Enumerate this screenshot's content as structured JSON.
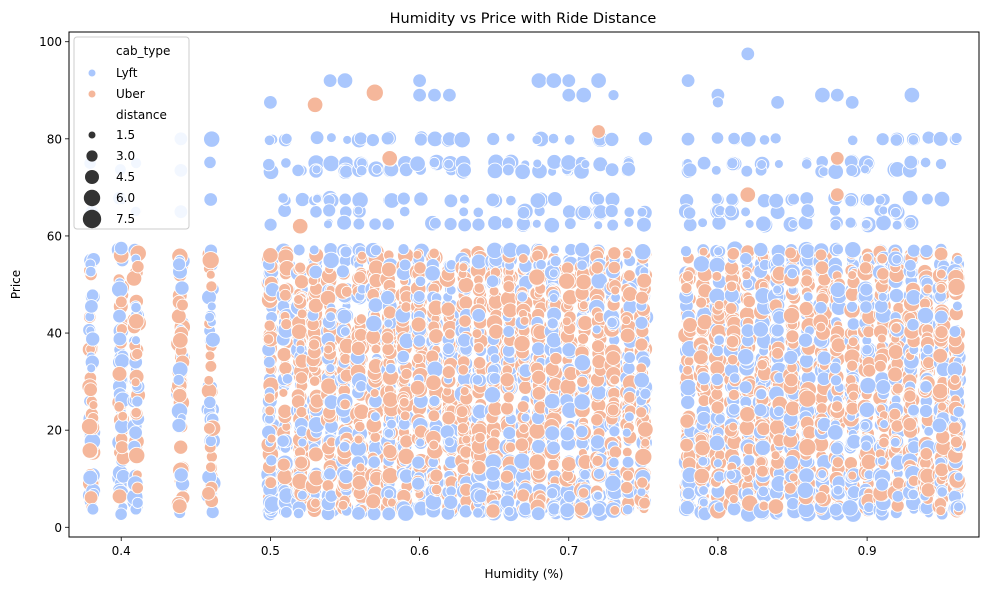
{
  "chart_data": {
    "type": "scatter",
    "title": "Humidity vs Price with Ride Distance",
    "xlabel": "Humidity (%)",
    "ylabel": "Price",
    "xlim": [
      0.365,
      0.975
    ],
    "ylim": [
      -2,
      102
    ],
    "xticks": [
      {
        "value": 0.4,
        "label": "0.4"
      },
      {
        "value": 0.5,
        "label": "0.5"
      },
      {
        "value": 0.6,
        "label": "0.6"
      },
      {
        "value": 0.7,
        "label": "0.7"
      },
      {
        "value": 0.8,
        "label": "0.8"
      },
      {
        "value": 0.9,
        "label": "0.9"
      }
    ],
    "yticks": [
      {
        "value": 0,
        "label": "0"
      },
      {
        "value": 20,
        "label": "20"
      },
      {
        "value": 40,
        "label": "40"
      },
      {
        "value": 60,
        "label": "60"
      },
      {
        "value": 80,
        "label": "80"
      },
      {
        "value": 100,
        "label": "100"
      }
    ],
    "grid": false,
    "hue": "cab_type",
    "size": "distance",
    "series": [
      {
        "name": "Lyft",
        "color": "#aac7fd"
      },
      {
        "name": "Uber",
        "color": "#f5b79b"
      }
    ],
    "humidity_levels": [
      0.38,
      0.4,
      0.41,
      0.44,
      0.46,
      0.5,
      0.51,
      0.52,
      0.53,
      0.54,
      0.55,
      0.56,
      0.57,
      0.58,
      0.59,
      0.6,
      0.61,
      0.62,
      0.63,
      0.64,
      0.65,
      0.66,
      0.67,
      0.68,
      0.69,
      0.7,
      0.71,
      0.72,
      0.73,
      0.74,
      0.75,
      0.78,
      0.79,
      0.8,
      0.81,
      0.82,
      0.83,
      0.84,
      0.85,
      0.86,
      0.87,
      0.88,
      0.89,
      0.9,
      0.91,
      0.92,
      0.93,
      0.94,
      0.95,
      0.96
    ],
    "highlight_points": [
      {
        "series": "Lyft",
        "x": 0.82,
        "y": 97.5,
        "distance": 3.0
      },
      {
        "series": "Lyft",
        "x": 0.5,
        "y": 87.5,
        "distance": 3.0
      },
      {
        "series": "Lyft",
        "x": 0.54,
        "y": 92.0,
        "distance": 3.0
      },
      {
        "series": "Lyft",
        "x": 0.55,
        "y": 92.0,
        "distance": 4.5
      },
      {
        "series": "Lyft",
        "x": 0.6,
        "y": 92.0,
        "distance": 3.0
      },
      {
        "series": "Lyft",
        "x": 0.6,
        "y": 89.0,
        "distance": 3.0
      },
      {
        "series": "Lyft",
        "x": 0.61,
        "y": 89.0,
        "distance": 3.0
      },
      {
        "series": "Lyft",
        "x": 0.62,
        "y": 89.0,
        "distance": 3.0
      },
      {
        "series": "Lyft",
        "x": 0.68,
        "y": 92.0,
        "distance": 4.5
      },
      {
        "series": "Lyft",
        "x": 0.69,
        "y": 92.0,
        "distance": 4.5
      },
      {
        "series": "Lyft",
        "x": 0.7,
        "y": 92.0,
        "distance": 3.0
      },
      {
        "series": "Lyft",
        "x": 0.7,
        "y": 89.0,
        "distance": 3.0
      },
      {
        "series": "Lyft",
        "x": 0.71,
        "y": 89.0,
        "distance": 4.5
      },
      {
        "series": "Lyft",
        "x": 0.72,
        "y": 92.0,
        "distance": 4.5
      },
      {
        "series": "Lyft",
        "x": 0.73,
        "y": 89.0,
        "distance": 1.5
      },
      {
        "series": "Lyft",
        "x": 0.78,
        "y": 92.0,
        "distance": 3.0
      },
      {
        "series": "Lyft",
        "x": 0.8,
        "y": 89.0,
        "distance": 3.0
      },
      {
        "series": "Lyft",
        "x": 0.8,
        "y": 87.5,
        "distance": 1.5
      },
      {
        "series": "Lyft",
        "x": 0.84,
        "y": 87.5,
        "distance": 3.0
      },
      {
        "series": "Lyft",
        "x": 0.87,
        "y": 89.0,
        "distance": 4.5
      },
      {
        "series": "Lyft",
        "x": 0.88,
        "y": 89.0,
        "distance": 3.0
      },
      {
        "series": "Lyft",
        "x": 0.89,
        "y": 87.5,
        "distance": 3.0
      },
      {
        "series": "Lyft",
        "x": 0.93,
        "y": 89.0,
        "distance": 4.5
      },
      {
        "series": "Uber",
        "x": 0.53,
        "y": 87.0,
        "distance": 4.5
      },
      {
        "series": "Uber",
        "x": 0.57,
        "y": 89.5,
        "distance": 6.0
      },
      {
        "series": "Uber",
        "x": 0.72,
        "y": 81.5,
        "distance": 3.0
      },
      {
        "series": "Uber",
        "x": 0.58,
        "y": 76.0,
        "distance": 4.5
      },
      {
        "series": "Uber",
        "x": 0.88,
        "y": 76.0,
        "distance": 3.0
      },
      {
        "series": "Uber",
        "x": 0.82,
        "y": 68.5,
        "distance": 4.5
      },
      {
        "series": "Uber",
        "x": 0.88,
        "y": 68.5,
        "distance": 3.0
      },
      {
        "series": "Uber",
        "x": 0.52,
        "y": 62.0,
        "distance": 4.5
      },
      {
        "series": "Uber",
        "x": 0.46,
        "y": 55.0,
        "distance": 6.0
      },
      {
        "series": "Uber",
        "x": 0.4,
        "y": 56.0,
        "distance": 4.5
      },
      {
        "series": "Uber",
        "x": 0.5,
        "y": 56.0,
        "distance": 4.5
      },
      {
        "series": "Lyft",
        "x": 0.4,
        "y": 57.5,
        "distance": 3.0
      },
      {
        "series": "Lyft",
        "x": 0.38,
        "y": 45.5,
        "distance": 3.0
      },
      {
        "series": "Lyft",
        "x": 0.41,
        "y": 75.0,
        "distance": 1.5
      },
      {
        "series": "Lyft",
        "x": 0.44,
        "y": 80.0,
        "distance": 3.0
      },
      {
        "series": "Lyft",
        "x": 0.44,
        "y": 73.5,
        "distance": 3.0
      },
      {
        "series": "Lyft",
        "x": 0.44,
        "y": 65.0,
        "distance": 3.0
      },
      {
        "series": "Lyft",
        "x": 0.46,
        "y": 67.5,
        "distance": 3.0
      },
      {
        "series": "Uber",
        "x": 0.96,
        "y": 49.5,
        "distance": 6.0
      },
      {
        "series": "Uber",
        "x": 0.75,
        "y": 14.5,
        "distance": 6.0
      },
      {
        "series": "Uber",
        "x": 0.86,
        "y": 26.5,
        "distance": 6.0
      },
      {
        "series": "Uber",
        "x": 0.86,
        "y": 16.5,
        "distance": 6.0
      }
    ],
    "legend": {
      "location": "top-left",
      "hue_title": "cab_type",
      "size_title": "distance",
      "size_entries": [
        {
          "label": "1.5",
          "value": 1.5
        },
        {
          "label": "3.0",
          "value": 3.0
        },
        {
          "label": "4.5",
          "value": 4.5
        },
        {
          "label": "6.0",
          "value": 6.0
        },
        {
          "label": "7.5",
          "value": 7.5
        }
      ]
    }
  }
}
